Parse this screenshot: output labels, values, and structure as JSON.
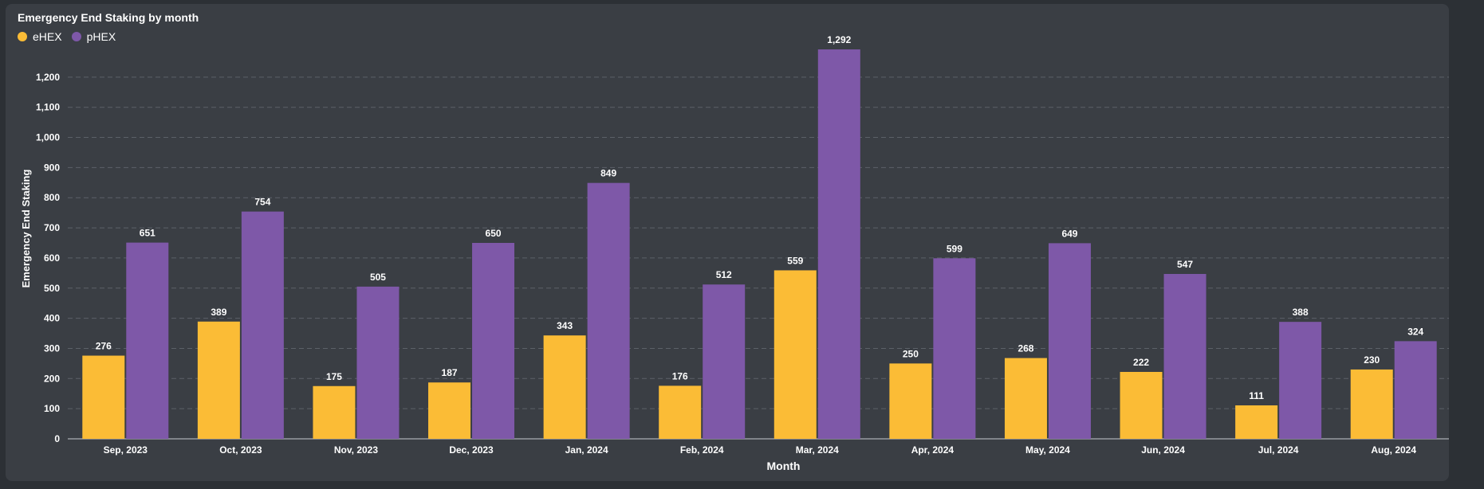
{
  "card": {
    "title": "Emergency End Staking by month"
  },
  "chart_data": {
    "type": "bar",
    "title": "Emergency End Staking by month",
    "xlabel": "Month",
    "ylabel": "Emergency End Staking",
    "ylim": [
      0,
      1300
    ],
    "yticks": [
      0,
      100,
      200,
      300,
      400,
      500,
      600,
      700,
      800,
      900,
      1000,
      1100,
      1200
    ],
    "grid": true,
    "legend_position": "top-left",
    "categories": [
      "Sep, 2023",
      "Oct, 2023",
      "Nov, 2023",
      "Dec, 2023",
      "Jan, 2024",
      "Feb, 2024",
      "Mar, 2024",
      "Apr, 2024",
      "May, 2024",
      "Jun, 2024",
      "Jul, 2024",
      "Aug, 2024"
    ],
    "series": [
      {
        "name": "eHEX",
        "color": "#fbbc36",
        "values": [
          276,
          389,
          175,
          187,
          343,
          176,
          559,
          250,
          268,
          222,
          111,
          230
        ]
      },
      {
        "name": "pHEX",
        "color": "#7e58a8",
        "values": [
          651,
          754,
          505,
          650,
          849,
          512,
          1292,
          599,
          649,
          547,
          388,
          324
        ]
      }
    ]
  }
}
